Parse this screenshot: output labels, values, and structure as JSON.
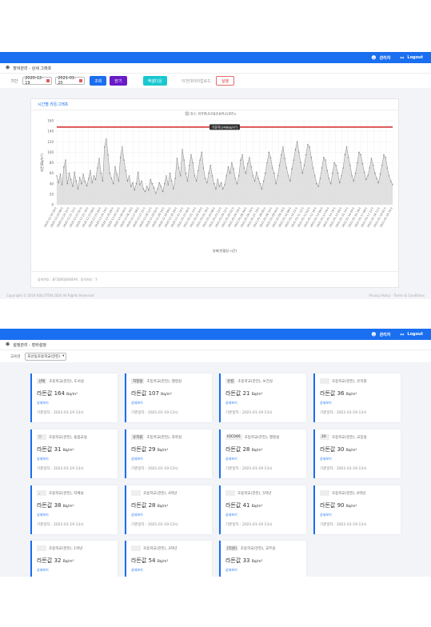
{
  "screen1": {
    "header": {
      "user_label": "관리자",
      "logout_label": "Logout"
    },
    "breadcrumb": "장비관리 - 상세 그래프",
    "filter": {
      "period_label": "기간",
      "date_from": "2020-12-19",
      "date_to": "2021-01-20",
      "search_button": "조회",
      "close_button": "닫기",
      "excel_button": "엑셀다운",
      "upload_label": "이전데이터업로드",
      "run_button": "실행"
    },
    "card_title": "시간별 라돈그래프",
    "card_footer": "장비번호 : EF1B0Q0004A9 , 동작여부 : Y",
    "footer_left": "Copyright © 2019 SOLUTION 2020 All Rights Reserved",
    "footer_right": "Privacy Policy · Terms & Conditions"
  },
  "chart_data": {
    "type": "area",
    "legend": "장소: 위치명(포산동초등학교(한진))",
    "reference_label": "기준치(148Bq/m³)",
    "reference_value": 148,
    "xlabel": "날짜(연월일 시간)",
    "ylabel": "라돈(Bq/m³)",
    "ylim": [
      0,
      160
    ],
    "yticks": [
      0,
      20,
      40,
      60,
      80,
      100,
      120,
      140,
      160
    ],
    "grid": true,
    "legend_position": "top-center",
    "colors": {
      "line": "#9a9a9a",
      "fill": "#d9d9d9",
      "reference": "#d22424",
      "point": "#7a7a7a"
    },
    "x_tick_labels": [
      "2020-12-19 18시",
      "2020-12-20 08시",
      "2020-12-20 22시",
      "2020-12-21 12시",
      "2020-12-22 02시",
      "2020-12-22 16시",
      "2020-12-23 06시",
      "2020-12-23 20시",
      "2020-12-24 10시",
      "2020-12-25 00시",
      "2020-12-25 14시",
      "2020-12-26 04시",
      "2020-12-26 18시",
      "2020-12-27 08시",
      "2020-12-27 22시",
      "2020-12-28 12시",
      "2020-12-29 02시",
      "2020-12-29 16시",
      "2020-12-30 06시",
      "2020-12-30 20시",
      "2020-12-31 10시",
      "2021-01-01 00시",
      "2021-01-01 14시",
      "2021-01-02 04시",
      "2021-01-02 18시",
      "2021-01-03 08시",
      "2021-01-03 22시",
      "2021-01-04 12시",
      "2021-01-05 02시",
      "2021-01-05 16시",
      "2021-01-06 06시",
      "2021-01-06 20시",
      "2021-01-07 10시",
      "2021-01-08 00시",
      "2021-01-08 14시",
      "2021-01-09 04시",
      "2021-01-09 18시",
      "2021-01-10 08시",
      "2021-01-10 22시",
      "2021-01-11 12시",
      "2021-01-12 02시",
      "2021-01-12 16시",
      "2021-01-13 06시",
      "2021-01-13 20시",
      "2021-01-14 10시",
      "2021-01-15 00시",
      "2021-01-15 14시",
      "2021-01-16 04시",
      "2021-01-16 18시",
      "2021-01-17 08시",
      "2021-01-17 22시",
      "2021-01-18 12시",
      "2021-01-19 02시",
      "2021-01-19 16시"
    ],
    "values": [
      55,
      42,
      58,
      38,
      72,
      85,
      40,
      60,
      48,
      35,
      62,
      45,
      30,
      52,
      40,
      58,
      44,
      36,
      50,
      65,
      42,
      55,
      48,
      70,
      88,
      60,
      45,
      110,
      125,
      95,
      60,
      50,
      40,
      72,
      58,
      45,
      90,
      110,
      85,
      65,
      45,
      55,
      35,
      42,
      28,
      40,
      62,
      38,
      45,
      30,
      25,
      35,
      28,
      48,
      40,
      32,
      22,
      30,
      42,
      35,
      25,
      40,
      55,
      38,
      60,
      45,
      30,
      50,
      88,
      70,
      55,
      105,
      85,
      60,
      45,
      75,
      95,
      80,
      55,
      45,
      65,
      85,
      100,
      70,
      50,
      42,
      60,
      75,
      55,
      40,
      30,
      48,
      35,
      42,
      30,
      38,
      55,
      72,
      60,
      80,
      68,
      50,
      40,
      55,
      85,
      95,
      70,
      60,
      78,
      90,
      72,
      55,
      45,
      62,
      50,
      40,
      30,
      45,
      60,
      80,
      100,
      90,
      70,
      60,
      40,
      55,
      75,
      95,
      110,
      88,
      70,
      55,
      45,
      68,
      85,
      105,
      120,
      100,
      80,
      60,
      75,
      95,
      115,
      110,
      90,
      70,
      55,
      40,
      35,
      50,
      70,
      90,
      85,
      65,
      50,
      40,
      60,
      80,
      75,
      60,
      42,
      55,
      70,
      95,
      110,
      90,
      75,
      55,
      45,
      60,
      80,
      100,
      95,
      78,
      62,
      48,
      55,
      70,
      88,
      75,
      60,
      50,
      42,
      58,
      75,
      95,
      90,
      70,
      55,
      45,
      38
    ]
  },
  "screen2": {
    "header": {
      "user_label": "관리자",
      "logout_label": "Logout"
    },
    "breadcrumb": "설정관리 - 장비설정",
    "school_label": "교육명",
    "school_select": "포산동초등학교(한진)",
    "value_label": "라돈값",
    "unit": "Bq/m³",
    "detail_link": "상세보기",
    "date_prefix": "기준일자 :",
    "date_value": "2021-01-19 13시",
    "cards": [
      {
        "badge": "선택",
        "name": "초등학교(한진), 도서실",
        "value": "164"
      },
      {
        "badge": "지정형",
        "name": "초등학교(한진), 행정실",
        "value": "107"
      },
      {
        "badge": "유칼",
        "name": "초등학교(한진), 보건실",
        "value": "21"
      },
      {
        "badge": "",
        "name": "초등학교(한진), 유치원",
        "value": "36"
      },
      {
        "badge": "○",
        "name": "초등학교(한진), 돌봄교실",
        "value": "31"
      },
      {
        "badge": "유치원",
        "name": "초등학교(한진), 과학실",
        "value": "29"
      },
      {
        "badge": "IOC046",
        "name": "초등학교(한진), 행정실",
        "value": "28"
      },
      {
        "badge": "20",
        "name": "초등학교(한진), 교장실",
        "value": "30"
      },
      {
        "badge": "_",
        "name": "초등학교(한진), 지체실",
        "value": "38"
      },
      {
        "badge": "",
        "name": "초등학교(한진), 4학년",
        "value": "28"
      },
      {
        "badge": "",
        "name": "초등학교(한진), 5학년",
        "value": "41"
      },
      {
        "badge": "",
        "name": "초등학교(한진), 6학년",
        "value": "90"
      },
      {
        "badge": "",
        "name": "초등학교(한진), 1학년",
        "value": "32"
      },
      {
        "badge": "",
        "name": "초등학교(한진), 3학년",
        "value": "54"
      },
      {
        "badge": "[다원]",
        "name": "초등학교(한진), 교무실",
        "value": "33"
      }
    ]
  }
}
